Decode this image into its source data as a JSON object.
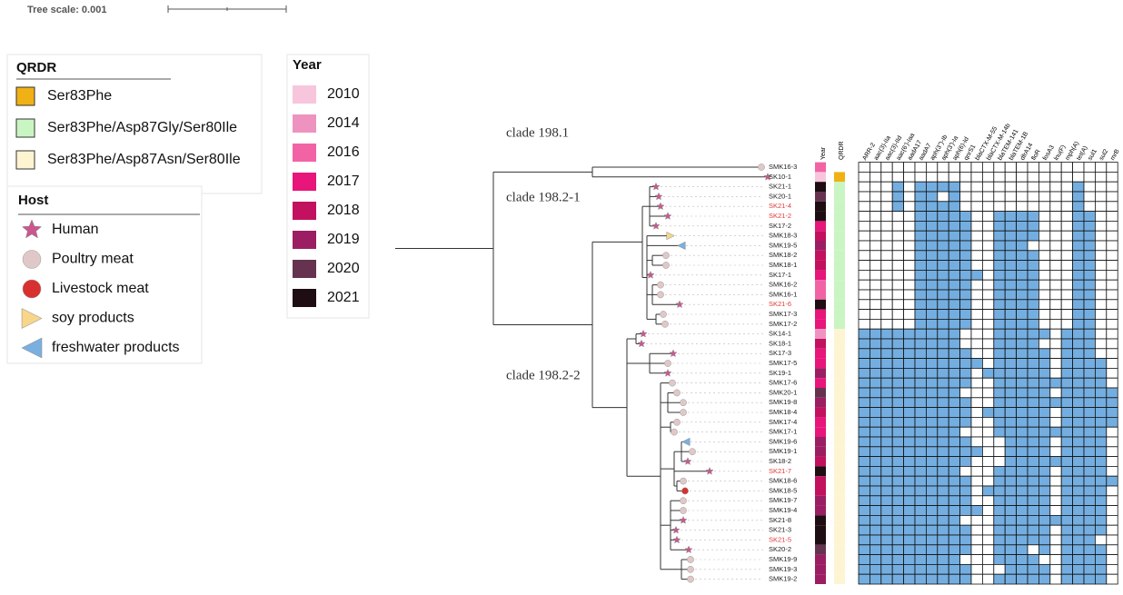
{
  "tree_scale": "Tree scale: 0.001",
  "qrdr_legend": {
    "title": "QRDR",
    "items": [
      {
        "label": "Ser83Phe",
        "color": "#f0b114"
      },
      {
        "label": "Ser83Phe/Asp87Gly/Ser80Ile",
        "color": "#c9f5c2"
      },
      {
        "label": "Ser83Phe/Asp87Asn/Ser80Ile",
        "color": "#fdf4d2"
      }
    ]
  },
  "host_legend": {
    "title": "Host",
    "items": [
      {
        "label": "Human",
        "shape": "star",
        "color": "#c9588f"
      },
      {
        "label": "Poultry meat",
        "shape": "circle",
        "color": "#e0c8c8"
      },
      {
        "label": "Livestock meat",
        "shape": "circle",
        "color": "#d83030"
      },
      {
        "label": "soy products",
        "shape": "triangle-right",
        "color": "#f7d58a"
      },
      {
        "label": "freshwater products",
        "shape": "triangle-left",
        "color": "#7ab0df"
      }
    ]
  },
  "year_legend": {
    "title": "Year",
    "items": [
      {
        "label": "2010",
        "color": "#f7c6dc"
      },
      {
        "label": "2014",
        "color": "#ee93bf"
      },
      {
        "label": "2016",
        "color": "#f263a6"
      },
      {
        "label": "2017",
        "color": "#e8157a"
      },
      {
        "label": "2018",
        "color": "#c2115f"
      },
      {
        "label": "2019",
        "color": "#9b1e62"
      },
      {
        "label": "2020",
        "color": "#653350"
      },
      {
        "label": "2021",
        "color": "#1e0d12"
      }
    ]
  },
  "clades": [
    "clade 198.1",
    "clade 198.2-1",
    "clade 198.2-2"
  ],
  "columns": {
    "year": "Year",
    "qrdr": "QRDR"
  },
  "genes": [
    "ARR-2",
    "aac(3)-IIa",
    "aac(3)-IId",
    "aac(6')-Iaa",
    "aadA17",
    "aadA7",
    "aph(3'')-Ib",
    "aph(3')-Ia",
    "aph(6)-Id",
    "qnrS1",
    "blaCTX-M-55",
    "blaCTX-M-14b",
    "blaTEM-141",
    "blaTEM-1B",
    "dfrA14",
    "floR",
    "fosA3",
    "lnu(F)",
    "mph(A)",
    "tet(A)",
    "sul1",
    "sul2",
    "mrB"
  ],
  "heatmap_color": "#74aee0",
  "leaves": [
    {
      "label": "SMK16-3",
      "year": "2016",
      "qrdr": null,
      "host": "Poultry meat",
      "label_color": "#222"
    },
    {
      "label": "SK10-1",
      "year": "2010",
      "qrdr": "Ser83Phe",
      "host": "Human",
      "label_color": "#222"
    },
    {
      "label": "SK21-1",
      "year": "2021",
      "qrdr": "Ser83Phe/Asp87Gly/Ser80Ile",
      "host": "Human",
      "label_color": "#222"
    },
    {
      "label": "SK20-1",
      "year": "2020",
      "qrdr": "Ser83Phe/Asp87Gly/Ser80Ile",
      "host": "Human",
      "label_color": "#222"
    },
    {
      "label": "SK21-4",
      "year": "2021",
      "qrdr": "Ser83Phe/Asp87Gly/Ser80Ile",
      "host": "Human",
      "label_color": "#e03a3a"
    },
    {
      "label": "SK21-2",
      "year": "2021",
      "qrdr": "Ser83Phe/Asp87Gly/Ser80Ile",
      "host": "Human",
      "label_color": "#e03a3a"
    },
    {
      "label": "SK17-2",
      "year": "2017",
      "qrdr": "Ser83Phe/Asp87Gly/Ser80Ile",
      "host": "Human",
      "label_color": "#222"
    },
    {
      "label": "SMK18-3",
      "year": "2018",
      "qrdr": "Ser83Phe/Asp87Gly/Ser80Ile",
      "host": "soy products",
      "label_color": "#222"
    },
    {
      "label": "SMK19-5",
      "year": "2019",
      "qrdr": "Ser83Phe/Asp87Gly/Ser80Ile",
      "host": "freshwater products",
      "label_color": "#222"
    },
    {
      "label": "SMK18-2",
      "year": "2018",
      "qrdr": "Ser83Phe/Asp87Gly/Ser80Ile",
      "host": "Poultry meat",
      "label_color": "#222"
    },
    {
      "label": "SMK18-1",
      "year": "2018",
      "qrdr": "Ser83Phe/Asp87Gly/Ser80Ile",
      "host": "Poultry meat",
      "label_color": "#222"
    },
    {
      "label": "SK17-1",
      "year": "2017",
      "qrdr": "Ser83Phe/Asp87Gly/Ser80Ile",
      "host": "Human",
      "label_color": "#222"
    },
    {
      "label": "SMK16-2",
      "year": "2016",
      "qrdr": "Ser83Phe/Asp87Gly/Ser80Ile",
      "host": "Poultry meat",
      "label_color": "#222"
    },
    {
      "label": "SMK16-1",
      "year": "2016",
      "qrdr": "Ser83Phe/Asp87Gly/Ser80Ile",
      "host": "Poultry meat",
      "label_color": "#222"
    },
    {
      "label": "SK21-6",
      "year": "2021",
      "qrdr": "Ser83Phe/Asp87Gly/Ser80Ile",
      "host": "Human",
      "label_color": "#e03a3a"
    },
    {
      "label": "SMK17-3",
      "year": "2017",
      "qrdr": "Ser83Phe/Asp87Gly/Ser80Ile",
      "host": "Poultry meat",
      "label_color": "#222"
    },
    {
      "label": "SMK17-2",
      "year": "2017",
      "qrdr": "Ser83Phe/Asp87Gly/Ser80Ile",
      "host": "Poultry meat",
      "label_color": "#222"
    },
    {
      "label": "SK14-1",
      "year": "2014",
      "qrdr": "Ser83Phe/Asp87Asn/Ser80Ile",
      "host": "Human",
      "label_color": "#222"
    },
    {
      "label": "SK18-1",
      "year": "2018",
      "qrdr": "Ser83Phe/Asp87Asn/Ser80Ile",
      "host": "Human",
      "label_color": "#222"
    },
    {
      "label": "SK17-3",
      "year": "2017",
      "qrdr": "Ser83Phe/Asp87Asn/Ser80Ile",
      "host": "Human",
      "label_color": "#222"
    },
    {
      "label": "SMK17-5",
      "year": "2017",
      "qrdr": "Ser83Phe/Asp87Asn/Ser80Ile",
      "host": "Poultry meat",
      "label_color": "#222"
    },
    {
      "label": "SK19-1",
      "year": "2019",
      "qrdr": "Ser83Phe/Asp87Asn/Ser80Ile",
      "host": "Human",
      "label_color": "#222"
    },
    {
      "label": "SMK17-6",
      "year": "2017",
      "qrdr": "Ser83Phe/Asp87Asn/Ser80Ile",
      "host": "Poultry meat",
      "label_color": "#222"
    },
    {
      "label": "SMK20-1",
      "year": "2020",
      "qrdr": "Ser83Phe/Asp87Asn/Ser80Ile",
      "host": "Poultry meat",
      "label_color": "#222"
    },
    {
      "label": "SMK19-8",
      "year": "2019",
      "qrdr": "Ser83Phe/Asp87Asn/Ser80Ile",
      "host": "Poultry meat",
      "label_color": "#222"
    },
    {
      "label": "SMK18-4",
      "year": "2018",
      "qrdr": "Ser83Phe/Asp87Asn/Ser80Ile",
      "host": "Poultry meat",
      "label_color": "#222"
    },
    {
      "label": "SMK17-4",
      "year": "2017",
      "qrdr": "Ser83Phe/Asp87Asn/Ser80Ile",
      "host": "Poultry meat",
      "label_color": "#222"
    },
    {
      "label": "SMK17-1",
      "year": "2017",
      "qrdr": "Ser83Phe/Asp87Asn/Ser80Ile",
      "host": "Poultry meat",
      "label_color": "#222"
    },
    {
      "label": "SMK19-6",
      "year": "2019",
      "qrdr": "Ser83Phe/Asp87Asn/Ser80Ile",
      "host": "freshwater products",
      "label_color": "#222"
    },
    {
      "label": "SMK19-1",
      "year": "2019",
      "qrdr": "Ser83Phe/Asp87Asn/Ser80Ile",
      "host": "Poultry meat",
      "label_color": "#222"
    },
    {
      "label": "SK18-2",
      "year": "2018",
      "qrdr": "Ser83Phe/Asp87Asn/Ser80Ile",
      "host": "Human",
      "label_color": "#222"
    },
    {
      "label": "SK21-7",
      "year": "2021",
      "qrdr": "Ser83Phe/Asp87Asn/Ser80Ile",
      "host": "Human",
      "label_color": "#e03a3a"
    },
    {
      "label": "SMK18-6",
      "year": "2018",
      "qrdr": "Ser83Phe/Asp87Asn/Ser80Ile",
      "host": "Poultry meat",
      "label_color": "#222"
    },
    {
      "label": "SMK18-5",
      "year": "2018",
      "qrdr": "Ser83Phe/Asp87Asn/Ser80Ile",
      "host": "Livestock meat",
      "label_color": "#222"
    },
    {
      "label": "SMK19-7",
      "year": "2019",
      "qrdr": "Ser83Phe/Asp87Asn/Ser80Ile",
      "host": "Poultry meat",
      "label_color": "#222"
    },
    {
      "label": "SMK19-4",
      "year": "2019",
      "qrdr": "Ser83Phe/Asp87Asn/Ser80Ile",
      "host": "Poultry meat",
      "label_color": "#222"
    },
    {
      "label": "SK21-8",
      "year": "2021",
      "qrdr": "Ser83Phe/Asp87Asn/Ser80Ile",
      "host": "Human",
      "label_color": "#222"
    },
    {
      "label": "SK21-3",
      "year": "2021",
      "qrdr": "Ser83Phe/Asp87Asn/Ser80Ile",
      "host": "Human",
      "label_color": "#222"
    },
    {
      "label": "SK21-5",
      "year": "2021",
      "qrdr": "Ser83Phe/Asp87Asn/Ser80Ile",
      "host": "Human",
      "label_color": "#e03a3a"
    },
    {
      "label": "SK20-2",
      "year": "2020",
      "qrdr": "Ser83Phe/Asp87Asn/Ser80Ile",
      "host": "Human",
      "label_color": "#222"
    },
    {
      "label": "SMK19-9",
      "year": "2019",
      "qrdr": "Ser83Phe/Asp87Asn/Ser80Ile",
      "host": "Poultry meat",
      "label_color": "#222"
    },
    {
      "label": "SMK19-3",
      "year": "2019",
      "qrdr": "Ser83Phe/Asp87Asn/Ser80Ile",
      "host": "Poultry meat",
      "label_color": "#222"
    },
    {
      "label": "SMK19-2",
      "year": "2019",
      "qrdr": "Ser83Phe/Asp87Asn/Ser80Ile",
      "host": "Poultry meat",
      "label_color": "#222"
    }
  ],
  "matrix": [
    [
      0,
      0,
      0,
      0,
      0,
      0,
      0,
      0,
      0,
      0,
      0,
      0,
      0,
      0,
      0,
      0,
      0,
      0,
      0,
      0,
      0,
      0,
      0
    ],
    [
      0,
      0,
      0,
      0,
      0,
      0,
      0,
      0,
      0,
      0,
      0,
      0,
      0,
      0,
      0,
      0,
      0,
      0,
      0,
      0,
      0,
      0,
      0
    ],
    [
      0,
      0,
      0,
      1,
      0,
      1,
      1,
      1,
      1,
      0,
      0,
      0,
      0,
      0,
      0,
      0,
      0,
      0,
      0,
      1,
      0,
      0,
      0
    ],
    [
      0,
      0,
      0,
      1,
      0,
      1,
      1,
      0,
      1,
      0,
      0,
      0,
      0,
      0,
      0,
      0,
      0,
      0,
      0,
      1,
      0,
      0,
      0
    ],
    [
      0,
      0,
      0,
      1,
      0,
      1,
      1,
      1,
      1,
      0,
      0,
      0,
      0,
      0,
      0,
      0,
      0,
      0,
      0,
      1,
      0,
      0,
      0
    ],
    [
      0,
      0,
      0,
      0,
      0,
      1,
      1,
      1,
      1,
      1,
      0,
      0,
      1,
      1,
      1,
      1,
      0,
      0,
      0,
      1,
      1,
      0,
      0
    ],
    [
      0,
      0,
      0,
      0,
      0,
      1,
      1,
      1,
      1,
      1,
      0,
      0,
      1,
      1,
      1,
      1,
      0,
      0,
      0,
      1,
      1,
      0,
      0
    ],
    [
      0,
      0,
      0,
      0,
      0,
      1,
      1,
      1,
      1,
      1,
      0,
      0,
      1,
      1,
      1,
      1,
      0,
      0,
      0,
      1,
      1,
      0,
      0
    ],
    [
      0,
      0,
      0,
      0,
      0,
      1,
      1,
      1,
      1,
      1,
      0,
      0,
      1,
      1,
      1,
      0,
      0,
      0,
      0,
      1,
      1,
      0,
      0
    ],
    [
      0,
      0,
      0,
      0,
      0,
      1,
      1,
      1,
      1,
      1,
      0,
      0,
      1,
      1,
      1,
      1,
      0,
      0,
      0,
      1,
      1,
      0,
      0
    ],
    [
      0,
      0,
      0,
      0,
      0,
      1,
      1,
      1,
      1,
      1,
      0,
      0,
      1,
      1,
      1,
      1,
      0,
      0,
      0,
      1,
      1,
      0,
      0
    ],
    [
      0,
      0,
      0,
      0,
      0,
      1,
      1,
      1,
      1,
      1,
      1,
      0,
      1,
      1,
      1,
      1,
      0,
      0,
      0,
      1,
      1,
      0,
      0
    ],
    [
      0,
      0,
      0,
      0,
      0,
      1,
      1,
      1,
      1,
      1,
      0,
      0,
      1,
      1,
      1,
      1,
      0,
      0,
      0,
      1,
      1,
      0,
      0
    ],
    [
      0,
      0,
      0,
      0,
      0,
      1,
      1,
      1,
      1,
      1,
      0,
      0,
      1,
      1,
      1,
      1,
      0,
      0,
      0,
      1,
      1,
      0,
      0
    ],
    [
      0,
      0,
      0,
      0,
      0,
      1,
      1,
      1,
      1,
      1,
      0,
      0,
      1,
      1,
      1,
      1,
      0,
      0,
      0,
      1,
      1,
      0,
      0
    ],
    [
      0,
      0,
      0,
      0,
      0,
      1,
      1,
      1,
      1,
      1,
      0,
      0,
      1,
      1,
      1,
      1,
      0,
      0,
      0,
      1,
      1,
      0,
      0
    ],
    [
      0,
      0,
      0,
      0,
      0,
      1,
      1,
      1,
      1,
      1,
      0,
      0,
      1,
      1,
      1,
      1,
      0,
      0,
      0,
      1,
      1,
      0,
      0
    ],
    [
      1,
      1,
      1,
      1,
      1,
      1,
      1,
      1,
      1,
      0,
      0,
      0,
      1,
      1,
      1,
      1,
      1,
      0,
      1,
      1,
      1,
      0,
      0
    ],
    [
      1,
      1,
      1,
      1,
      1,
      1,
      1,
      1,
      1,
      0,
      0,
      0,
      1,
      1,
      1,
      1,
      0,
      0,
      1,
      1,
      1,
      0,
      0
    ],
    [
      1,
      1,
      1,
      1,
      1,
      1,
      1,
      1,
      1,
      1,
      0,
      0,
      1,
      1,
      1,
      1,
      1,
      0,
      1,
      1,
      1,
      0,
      0
    ],
    [
      1,
      1,
      1,
      1,
      1,
      1,
      1,
      1,
      1,
      1,
      1,
      0,
      1,
      1,
      1,
      1,
      1,
      0,
      1,
      1,
      1,
      1,
      0
    ],
    [
      1,
      1,
      1,
      1,
      1,
      1,
      1,
      1,
      1,
      1,
      0,
      1,
      1,
      1,
      1,
      1,
      1,
      0,
      1,
      1,
      1,
      1,
      0
    ],
    [
      1,
      1,
      1,
      1,
      1,
      1,
      1,
      1,
      1,
      1,
      0,
      0,
      1,
      1,
      1,
      1,
      1,
      1,
      1,
      1,
      1,
      1,
      0
    ],
    [
      1,
      1,
      1,
      1,
      1,
      1,
      1,
      1,
      1,
      0,
      0,
      0,
      1,
      1,
      1,
      1,
      1,
      0,
      1,
      1,
      1,
      1,
      1
    ],
    [
      1,
      1,
      1,
      1,
      1,
      1,
      1,
      1,
      1,
      1,
      0,
      0,
      1,
      1,
      1,
      1,
      1,
      1,
      1,
      1,
      1,
      1,
      1
    ],
    [
      1,
      1,
      1,
      1,
      1,
      1,
      1,
      1,
      1,
      1,
      0,
      1,
      1,
      1,
      1,
      1,
      1,
      0,
      1,
      1,
      1,
      1,
      1
    ],
    [
      1,
      1,
      1,
      1,
      1,
      1,
      1,
      1,
      1,
      1,
      0,
      0,
      1,
      1,
      1,
      1,
      1,
      0,
      1,
      1,
      1,
      1,
      1
    ],
    [
      1,
      1,
      1,
      1,
      1,
      1,
      1,
      1,
      1,
      0,
      0,
      0,
      1,
      1,
      1,
      1,
      1,
      1,
      1,
      1,
      1,
      1,
      0
    ],
    [
      1,
      1,
      1,
      1,
      1,
      1,
      1,
      1,
      1,
      1,
      0,
      0,
      0,
      1,
      1,
      1,
      1,
      0,
      1,
      1,
      1,
      1,
      0
    ],
    [
      1,
      1,
      1,
      1,
      1,
      1,
      1,
      1,
      1,
      1,
      1,
      0,
      0,
      1,
      1,
      1,
      1,
      0,
      1,
      1,
      1,
      1,
      0
    ],
    [
      1,
      1,
      1,
      1,
      1,
      1,
      1,
      1,
      1,
      1,
      0,
      0,
      0,
      1,
      1,
      1,
      1,
      1,
      1,
      1,
      1,
      1,
      0
    ],
    [
      1,
      1,
      1,
      1,
      1,
      1,
      1,
      1,
      1,
      0,
      0,
      0,
      1,
      1,
      1,
      1,
      1,
      0,
      1,
      1,
      1,
      1,
      0
    ],
    [
      1,
      1,
      1,
      1,
      1,
      1,
      1,
      1,
      1,
      1,
      0,
      0,
      1,
      1,
      1,
      1,
      1,
      0,
      1,
      1,
      1,
      1,
      1
    ],
    [
      1,
      1,
      1,
      1,
      1,
      1,
      1,
      1,
      1,
      1,
      0,
      1,
      1,
      1,
      1,
      1,
      1,
      0,
      1,
      1,
      1,
      1,
      0
    ],
    [
      1,
      1,
      1,
      1,
      1,
      1,
      1,
      1,
      1,
      1,
      0,
      0,
      1,
      1,
      1,
      1,
      1,
      0,
      1,
      1,
      1,
      1,
      0
    ],
    [
      1,
      1,
      1,
      1,
      1,
      1,
      1,
      1,
      1,
      1,
      1,
      0,
      1,
      1,
      1,
      1,
      1,
      0,
      1,
      1,
      1,
      1,
      0
    ],
    [
      1,
      1,
      1,
      1,
      1,
      1,
      1,
      1,
      1,
      0,
      0,
      0,
      1,
      1,
      1,
      1,
      1,
      1,
      1,
      1,
      1,
      1,
      0
    ],
    [
      1,
      1,
      1,
      1,
      1,
      1,
      1,
      1,
      1,
      1,
      0,
      0,
      1,
      1,
      1,
      1,
      1,
      0,
      1,
      1,
      1,
      1,
      0
    ],
    [
      1,
      1,
      1,
      1,
      1,
      1,
      1,
      1,
      1,
      1,
      0,
      0,
      1,
      1,
      1,
      1,
      1,
      0,
      1,
      1,
      1,
      0,
      0
    ],
    [
      1,
      1,
      1,
      1,
      1,
      1,
      1,
      1,
      1,
      1,
      0,
      0,
      1,
      1,
      1,
      0,
      1,
      0,
      1,
      1,
      1,
      1,
      0
    ],
    [
      1,
      1,
      1,
      1,
      1,
      1,
      1,
      1,
      1,
      0,
      0,
      0,
      1,
      1,
      1,
      1,
      0,
      0,
      1,
      1,
      1,
      1,
      0
    ],
    [
      1,
      1,
      1,
      1,
      1,
      1,
      1,
      1,
      1,
      1,
      0,
      0,
      0,
      1,
      1,
      1,
      1,
      0,
      1,
      1,
      1,
      1,
      0
    ],
    [
      1,
      1,
      1,
      1,
      1,
      1,
      1,
      1,
      1,
      1,
      0,
      0,
      1,
      1,
      1,
      1,
      1,
      0,
      1,
      1,
      1,
      1,
      0
    ]
  ]
}
